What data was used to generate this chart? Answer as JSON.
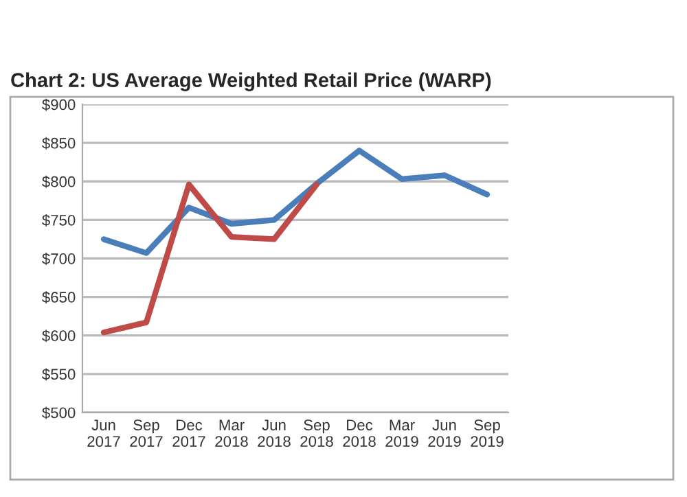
{
  "chart_data": {
    "type": "line",
    "title": "Chart 2: US Average Weighted Retail Price (WARP)",
    "categories": [
      "Jun\n2017",
      "Sep\n2017",
      "Dec\n2017",
      "Mar\n2018",
      "Jun\n2018",
      "Sep\n2018",
      "Dec\n2018",
      "Mar\n2019",
      "Jun\n2019",
      "Sep\n2019"
    ],
    "series": [
      {
        "color": "#4a7ebb",
        "values": [
          725,
          707,
          766,
          745,
          750,
          797,
          840,
          803,
          808,
          783
        ]
      },
      {
        "color": "#be4b48",
        "values": [
          604,
          617,
          796,
          728,
          725,
          796,
          null,
          null,
          null,
          null
        ]
      }
    ],
    "ylim": [
      500,
      900
    ],
    "yticks": [
      {
        "value": 500,
        "label": "$500"
      },
      {
        "value": 550,
        "label": "$550"
      },
      {
        "value": 600,
        "label": "$600"
      },
      {
        "value": 650,
        "label": "$650"
      },
      {
        "value": 700,
        "label": "$700"
      },
      {
        "value": 750,
        "label": "$750"
      },
      {
        "value": 800,
        "label": "$800"
      },
      {
        "value": 850,
        "label": "$850"
      },
      {
        "value": 900,
        "label": "$900"
      }
    ],
    "grid": "y",
    "marker": "none",
    "line_style": "solid"
  }
}
